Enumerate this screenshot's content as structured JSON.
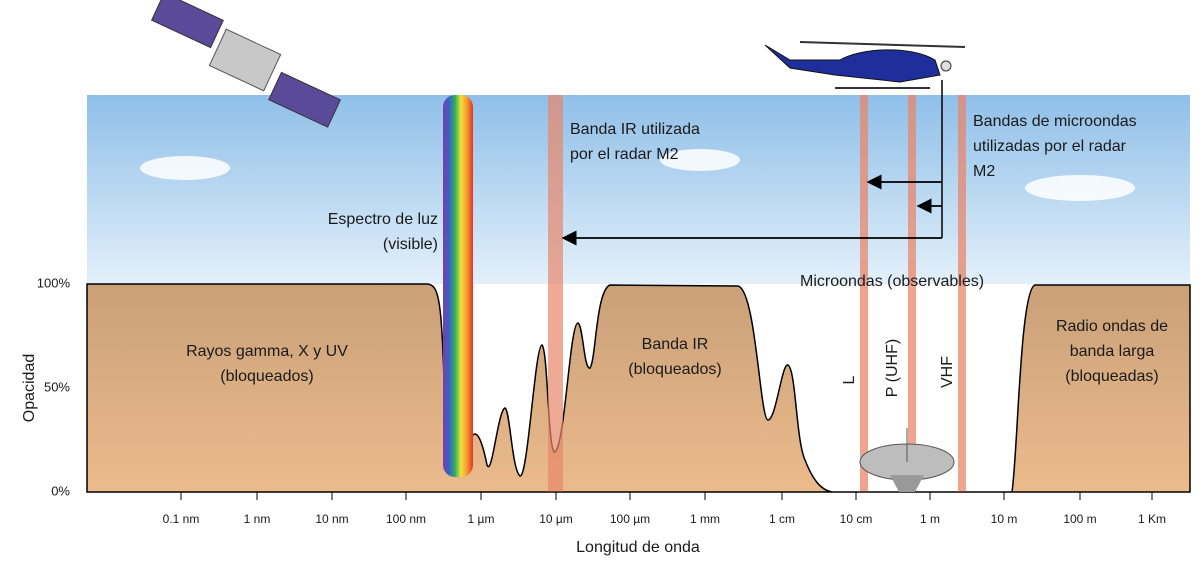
{
  "y_axis": {
    "label": "Opacidad",
    "ticks": [
      "100%",
      "50%",
      "0%"
    ]
  },
  "x_axis": {
    "label": "Longitud de onda",
    "ticks": [
      "0.1 nm",
      "1 nm",
      "10 nm",
      "100 nm",
      "1 µm",
      "10 µm",
      "100 µm",
      "1 mm",
      "1 cm",
      "10 cm",
      "1 m",
      "10 m",
      "100 m",
      "1 Km"
    ]
  },
  "annotations": {
    "visible": [
      "Espectro de luz",
      "(visible)"
    ],
    "ir_radar": [
      "Banda IR utilizada",
      "por el radar M2"
    ],
    "microwave_radar": [
      "Bandas de microondas",
      "utilizadas por el radar",
      "M2"
    ],
    "microwave_observable": "Microondas (observables)",
    "gamma": [
      "Rayos gamma, X y UV",
      "(bloqueados)"
    ],
    "ir_blocked": [
      "Banda IR",
      "(bloqueados)"
    ],
    "radio": [
      "Radio ondas de",
      "banda larga",
      "(bloqueadas)"
    ],
    "bands": [
      "L",
      "P (UHF)",
      "VHF"
    ]
  }
}
